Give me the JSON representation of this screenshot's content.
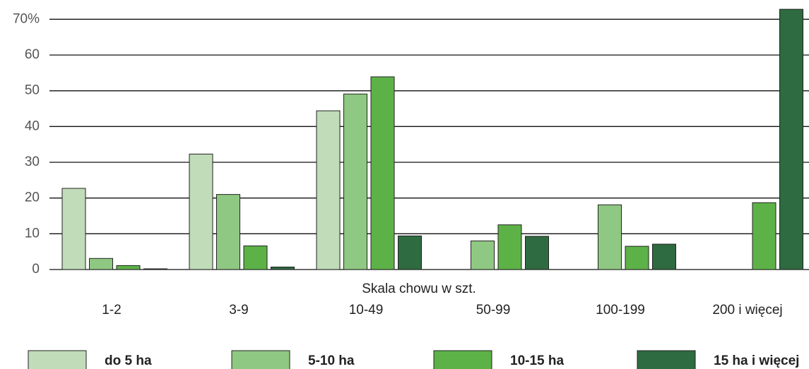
{
  "chart_data": {
    "type": "bar",
    "x_label": "Skala chowu w szt.",
    "categories": [
      "1-2",
      "3-9",
      "10-49",
      "50-99",
      "100-199",
      "200 i więcej"
    ],
    "series": [
      {
        "name": "do 5 ha",
        "color": "#c0dcb8",
        "values": [
          22.7,
          32.3,
          44.4,
          null,
          null,
          null
        ]
      },
      {
        "name": "5-10 ha",
        "color": "#8fc882",
        "values": [
          3.1,
          21.0,
          49.1,
          8.0,
          18.1,
          null
        ]
      },
      {
        "name": "10-15 ha",
        "color": "#5db247",
        "values": [
          1.1,
          6.6,
          53.9,
          12.5,
          6.5,
          18.7
        ]
      },
      {
        "name": "15 ha i więcej",
        "color": "#2e6b40",
        "values": [
          0.2,
          0.7,
          9.4,
          9.3,
          7.1,
          72.8
        ]
      }
    ],
    "ylim": [
      0,
      75
    ],
    "yticks": [
      0,
      10,
      20,
      30,
      40,
      50,
      60,
      {
        "value": 70,
        "label": "70%"
      }
    ],
    "grid": true,
    "legend": "bottom"
  }
}
